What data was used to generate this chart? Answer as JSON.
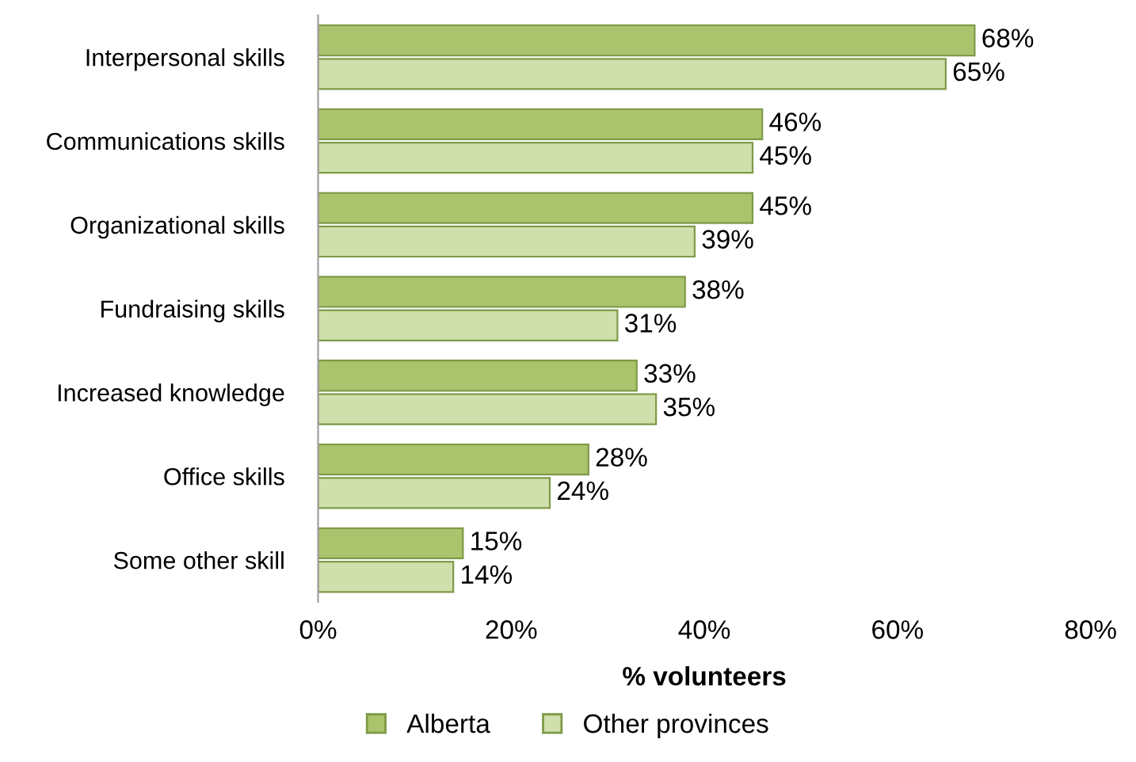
{
  "chart_data": {
    "type": "bar",
    "orientation": "horizontal",
    "xlabel": "% volunteers",
    "categories": [
      "Interpersonal skills",
      "Communications skills",
      "Organizational skills",
      "Fundraising skills",
      "Increased knowledge",
      "Office skills",
      "Some other skill"
    ],
    "series": [
      {
        "name": "Alberta",
        "color": "#a9c46c",
        "values": [
          68,
          46,
          45,
          38,
          33,
          28,
          15
        ],
        "value_labels": [
          "68%",
          "46%",
          "45%",
          "38%",
          "33%",
          "28%",
          "15%"
        ]
      },
      {
        "name": "Other provinces",
        "color": "#cfe0ac",
        "values": [
          65,
          45,
          39,
          31,
          35,
          24,
          14
        ],
        "value_labels": [
          "65%",
          "45%",
          "39%",
          "31%",
          "35%",
          "24%",
          "14%"
        ]
      }
    ],
    "xlim": [
      0,
      80
    ],
    "xticks": [
      {
        "value": 0,
        "label": "0%"
      },
      {
        "value": 20,
        "label": "20%"
      },
      {
        "value": 40,
        "label": "40%"
      },
      {
        "value": 60,
        "label": "60%"
      },
      {
        "value": 80,
        "label": "80%"
      }
    ],
    "grid": false,
    "legend": "bottom"
  }
}
